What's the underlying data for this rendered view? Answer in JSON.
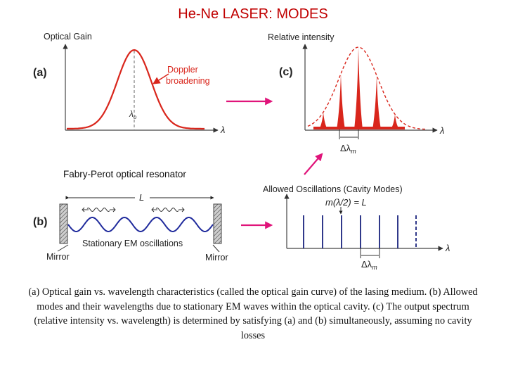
{
  "title": "He-Ne LASER: MODES",
  "panel_a": {
    "label": "(a)",
    "y_axis": "Optical Gain",
    "x_axis": "λ",
    "annotation_line1": "Doppler",
    "annotation_line2": "broadening",
    "center_label": "λ",
    "center_sub": "o"
  },
  "panel_b": {
    "label": "(b)",
    "heading": "Fabry-Perot optical resonator",
    "length_label": "L",
    "oscillation_label": "Stationary EM oscillations",
    "mirror_left": "Mirror",
    "mirror_right": "Mirror"
  },
  "panel_c": {
    "label": "(c)",
    "y_axis": "Relative intensity",
    "x_axis": "λ",
    "spacing_label": "Δλ",
    "spacing_sub": "m"
  },
  "panel_d": {
    "heading": "Allowed Oscillations (Cavity Modes)",
    "condition": "m(λ/2) = L",
    "x_axis": "λ",
    "spacing_label": "Δλ",
    "spacing_sub": "m"
  },
  "colors": {
    "title": "#c00000",
    "gain_curve": "#d9261c",
    "arrow": "#e0147a",
    "modes": "#1a237e",
    "wave": "#1f2a9c"
  },
  "caption": "(a) Optical gain vs. wavelength characteristics (called the optical gain curve) of the lasing medium. (b) Allowed modes and their wavelengths due to stationary EM waves within the optical cavity. (c) The output spectrum (relative intensity vs. wavelength) is determined by satisfying (a) and (b) simultaneously, assuming no cavity losses"
}
